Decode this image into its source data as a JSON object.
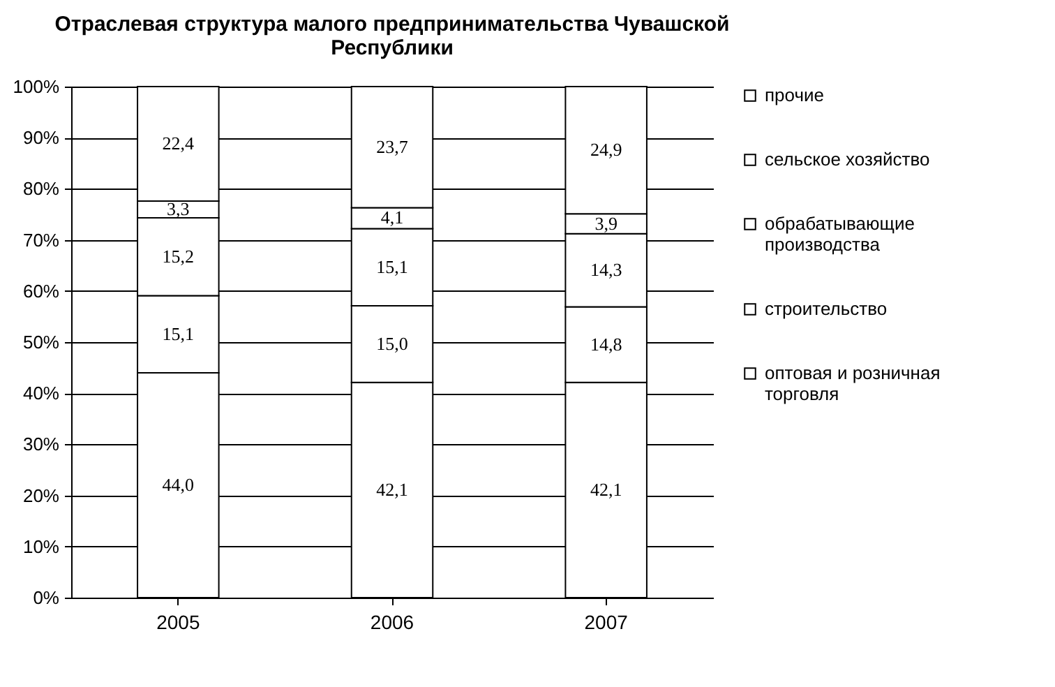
{
  "chart_data": {
    "type": "bar",
    "title": "Отраслевая структура малого предпринимательства Чувашской Республики",
    "categories": [
      "2005",
      "2006",
      "2007"
    ],
    "stacked": true,
    "series": [
      {
        "name": "оптовая и розничная торговля",
        "color": "#ffffff",
        "values": [
          44.0,
          42.1,
          42.1
        ],
        "value_labels": [
          "44,0",
          "42,1",
          "42,1"
        ]
      },
      {
        "name": "строительство",
        "color": "#ffffff",
        "values": [
          15.1,
          15.0,
          14.8
        ],
        "value_labels": [
          "15,1",
          "15,0",
          "14,8"
        ]
      },
      {
        "name": "обрабатывающие производства",
        "color": "#ffffff",
        "values": [
          15.2,
          15.1,
          14.3
        ],
        "value_labels": [
          "15,2",
          "15,1",
          "14,3"
        ]
      },
      {
        "name": "сельское хозяйство",
        "color": "#ffffff",
        "values": [
          3.3,
          4.1,
          3.9
        ],
        "value_labels": [
          "3,3",
          "4,1",
          "3,9"
        ]
      },
      {
        "name": "прочие",
        "color": "#ffffff",
        "values": [
          22.4,
          23.7,
          24.9
        ],
        "value_labels": [
          "22,4",
          "23,7",
          "24,9"
        ]
      }
    ],
    "ylim": [
      0,
      100
    ],
    "yticks": [
      {
        "value": 0,
        "label": "0%"
      },
      {
        "value": 10,
        "label": "10%"
      },
      {
        "value": 20,
        "label": "20%"
      },
      {
        "value": 30,
        "label": "30%"
      },
      {
        "value": 40,
        "label": "40%"
      },
      {
        "value": 50,
        "label": "50%"
      },
      {
        "value": 60,
        "label": "60%"
      },
      {
        "value": 70,
        "label": "70%"
      },
      {
        "value": 80,
        "label": "80%"
      },
      {
        "value": 90,
        "label": "90%"
      },
      {
        "value": 100,
        "label": "100%"
      }
    ],
    "grid": "y",
    "legend": "right"
  }
}
